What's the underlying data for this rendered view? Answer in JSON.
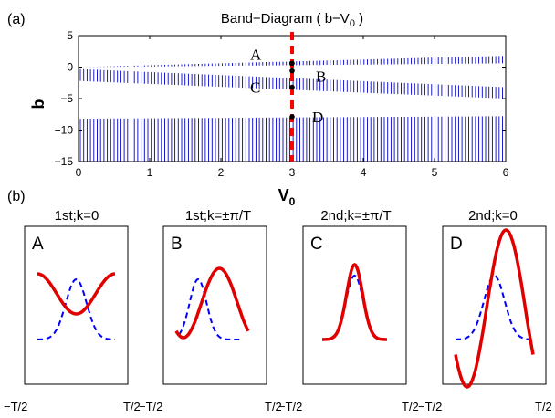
{
  "panel_labels": {
    "a": "(a)",
    "b": "(b)"
  },
  "chart_data": [
    {
      "type": "band-diagram",
      "title_prefix": "Band−Diagram ( b−V",
      "title_sub": "0",
      "title_suffix": " )",
      "xlabel": "V",
      "xlabel_sub": "0",
      "ylabel": "b",
      "xlim": [
        0,
        6
      ],
      "ylim": [
        -15,
        5
      ],
      "xticks": [
        "0",
        "1",
        "2",
        "3",
        "4",
        "5",
        "6"
      ],
      "yticks": [
        "5",
        "0",
        "−5",
        "−10",
        "−15"
      ],
      "line_color": "#0000c8",
      "marker_line_color": "#ff0000",
      "marker_line_x": 3,
      "points": [
        {
          "label": "A",
          "x": 3,
          "y": 0.6
        },
        {
          "label": "B",
          "x": 3,
          "y": -0.6
        },
        {
          "label": "C",
          "x": 3,
          "y": -3.2
        },
        {
          "label": "D",
          "x": 3,
          "y": -7.9
        }
      ],
      "bands": [
        {
          "lower": [
            0,
            0.6
          ],
          "upper": [
            0,
            1.8
          ]
        },
        {
          "lower": [
            -2.2,
            -5.0
          ],
          "upper": [
            -0.3,
            -3.2
          ]
        },
        {
          "lower": [
            -15,
            -15
          ],
          "upper": [
            -8.2,
            -7.8
          ]
        }
      ]
    },
    {
      "type": "line",
      "panels": [
        {
          "caption": "1st;k=0",
          "letter": "A",
          "x_left": "−T/2",
          "x_right": "T/2",
          "solid_color": "#e00000",
          "dashed_color": "#0000ff"
        },
        {
          "caption": "1st;k=±π/T",
          "letter": "B",
          "x_left": "−T/2",
          "x_right": "T/2",
          "solid_color": "#e00000",
          "dashed_color": "#0000ff"
        },
        {
          "caption": "2nd;k=±π/T",
          "letter": "C",
          "x_left": "−T/2",
          "x_right": "T/2",
          "solid_color": "#e00000",
          "dashed_color": "#0000ff"
        },
        {
          "caption": "2nd;k=0",
          "letter": "D",
          "x_left": "−T/2",
          "x_right": "T/2",
          "solid_color": "#e00000",
          "dashed_color": "#0000ff"
        }
      ]
    }
  ]
}
